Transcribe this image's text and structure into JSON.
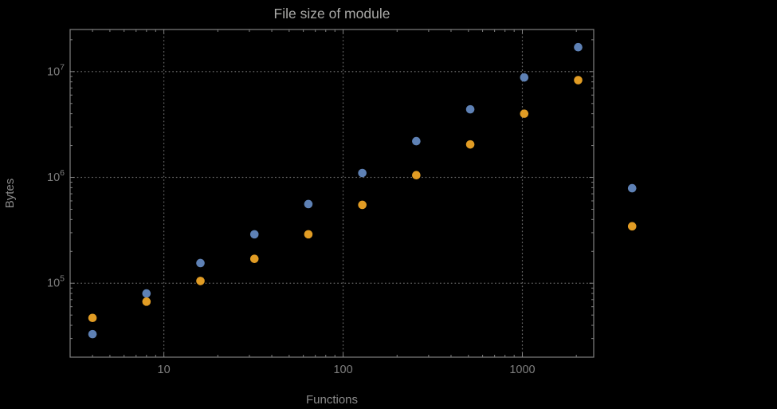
{
  "chart_data": {
    "type": "scatter",
    "title": "File size of module",
    "xlabel": "Functions",
    "ylabel": "Bytes",
    "x_scale": "log",
    "y_scale": "log",
    "xlim": [
      3,
      2500
    ],
    "ylim": [
      20000,
      25000000
    ],
    "grid": "dotted-major",
    "legend": "none",
    "frame": true,
    "x_ticks": [
      {
        "value": 10,
        "label": "10"
      },
      {
        "value": 100,
        "label": "100"
      },
      {
        "value": 1000,
        "label": "1000"
      }
    ],
    "y_ticks": [
      {
        "value": 100000,
        "base": "10",
        "exp": "5"
      },
      {
        "value": 1000000,
        "base": "10",
        "exp": "6"
      },
      {
        "value": 10000000,
        "base": "10",
        "exp": "7"
      }
    ],
    "x": [
      4,
      8,
      16,
      32,
      64,
      128,
      256,
      512,
      1024,
      2048,
      4096
    ],
    "series": [
      {
        "name": "blue",
        "color": "#5E81B5",
        "values": [
          33000,
          80000,
          155000,
          290000,
          560000,
          1100000,
          2200000,
          4400000,
          8800000,
          17000000,
          790000
        ]
      },
      {
        "name": "orange",
        "color": "#E19C24",
        "values": [
          47000,
          67000,
          105000,
          170000,
          290000,
          550000,
          1050000,
          2050000,
          4000000,
          8300000,
          345000
        ]
      }
    ]
  },
  "colors": {
    "background": "#000000",
    "frame": "#808080",
    "grid": "#666666",
    "tick_label": "#7f7f7f",
    "title": "#a9a9a7",
    "axis_label": "#8c8c8c",
    "series_blue": "#5E81B5",
    "series_orange": "#E19C24"
  }
}
